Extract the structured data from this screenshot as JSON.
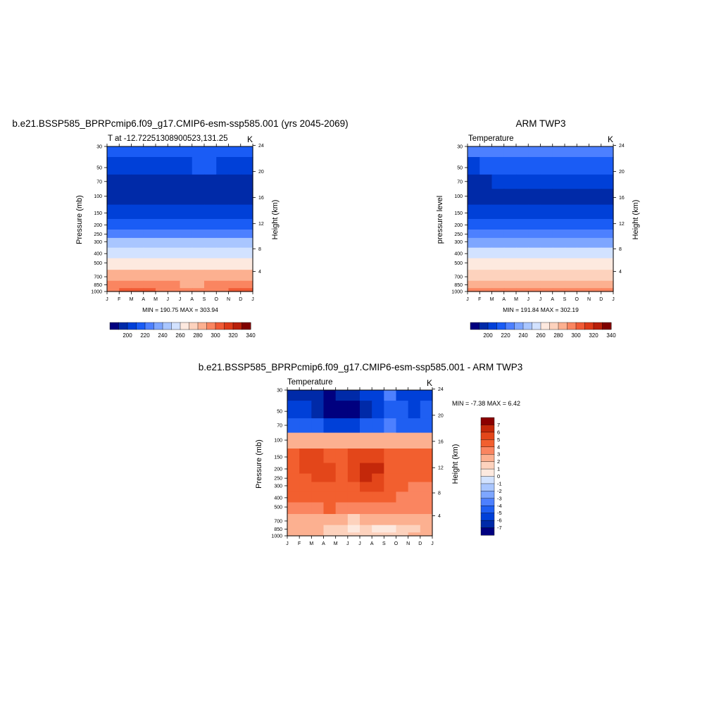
{
  "palettes": {
    "temperature": [
      "#00007f",
      "#002aa8",
      "#0040d8",
      "#1a5cf5",
      "#4d80ff",
      "#7ea6ff",
      "#a9c6ff",
      "#d2e2ff",
      "#fde9df",
      "#fdd2bd",
      "#fcb090",
      "#fa8560",
      "#f05a35",
      "#dc3a18",
      "#b81f0a",
      "#7f0000"
    ],
    "difference": [
      "#00007f",
      "#002aa8",
      "#0040d8",
      "#1f5ff2",
      "#4d80ff",
      "#7ea6ff",
      "#a9c6ff",
      "#d2e2ff",
      "#fde9df",
      "#fdd2bd",
      "#fcb090",
      "#fa8560",
      "#f25f2f",
      "#e3461a",
      "#c4280a",
      "#8b0000"
    ]
  },
  "chart_data": [
    {
      "id": "model",
      "type": "heatmap",
      "title": "b.e21.BSSP585_BPRPcmip6.f09_g17.CMIP6-esm-ssp585.001 (yrs 2045-2069)",
      "left_string": "T at -12.72251308900523,131.25",
      "right_string": "K",
      "ylabel": "Pressure (mb)",
      "ylabel_right": "Height (km)",
      "x_ticks": [
        "J",
        "F",
        "M",
        "A",
        "M",
        "J",
        "J",
        "A",
        "S",
        "O",
        "N",
        "D",
        "J"
      ],
      "y_ticks": [
        "30",
        "50",
        "70",
        "100",
        "150",
        "200",
        "250",
        "300",
        "400",
        "500",
        "700",
        "850",
        "1000"
      ],
      "y_ticks_right": [
        "24",
        "20",
        "16",
        "12",
        "8",
        "4"
      ],
      "stats": "MIN = 190.75 MAX = 303.94",
      "colorbar_labels": [
        "200",
        "220",
        "240",
        "260",
        "280",
        "300",
        "320",
        "340"
      ],
      "columns": [
        "J",
        "F",
        "M",
        "A",
        "M",
        "J",
        "J",
        "A",
        "S",
        "O",
        "N",
        "D"
      ],
      "levels": [
        30,
        50,
        70,
        100,
        150,
        200,
        250,
        300,
        400,
        500,
        700,
        850,
        1000
      ],
      "palette": "temperature",
      "values": [
        [
          213,
          213,
          214,
          215,
          216,
          217,
          218,
          219,
          219,
          218,
          216,
          214
        ],
        [
          201,
          202,
          203,
          205,
          207,
          208,
          209,
          210,
          210,
          208,
          205,
          203
        ],
        [
          195,
          195,
          196,
          197,
          197,
          198,
          198,
          198,
          198,
          198,
          197,
          196
        ],
        [
          196,
          196,
          196,
          196,
          196,
          196,
          196,
          196,
          196,
          196,
          196,
          196
        ],
        [
          208,
          208,
          208,
          208,
          209,
          209,
          209,
          209,
          209,
          209,
          208,
          208
        ],
        [
          219,
          219,
          219,
          219,
          219,
          219,
          219,
          219,
          219,
          219,
          219,
          219
        ],
        [
          229,
          229,
          229,
          229,
          229,
          229,
          229,
          229,
          229,
          229,
          229,
          229
        ],
        [
          242,
          242,
          242,
          242,
          242,
          242,
          242,
          242,
          242,
          242,
          242,
          242
        ],
        [
          256,
          256,
          256,
          256,
          256,
          256,
          256,
          256,
          256,
          256,
          256,
          256
        ],
        [
          268,
          268,
          268,
          268,
          268,
          268,
          268,
          268,
          268,
          268,
          268,
          268
        ],
        [
          281,
          282,
          282,
          282,
          282,
          281,
          281,
          281,
          281,
          282,
          282,
          282
        ],
        [
          292,
          292,
          292,
          292,
          291,
          290,
          289,
          289,
          290,
          291,
          292,
          292
        ],
        [
          299,
          300,
          300,
          300,
          298,
          296,
          295,
          295,
          297,
          299,
          300,
          300
        ]
      ]
    },
    {
      "id": "obs",
      "type": "heatmap",
      "title": "ARM TWP3",
      "left_string": "Temperature",
      "right_string": "K",
      "ylabel": "pressure level",
      "ylabel_right": "Height (km)",
      "x_ticks": [
        "J",
        "F",
        "M",
        "A",
        "M",
        "J",
        "J",
        "A",
        "S",
        "O",
        "N",
        "D",
        "J"
      ],
      "y_ticks": [
        "30",
        "50",
        "70",
        "100",
        "150",
        "200",
        "250",
        "300",
        "400",
        "500",
        "700",
        "850",
        "1000"
      ],
      "y_ticks_right": [
        "24",
        "20",
        "16",
        "12",
        "8",
        "4"
      ],
      "stats": "MIN = 191.84 MAX = 302.19",
      "colorbar_labels": [
        "200",
        "220",
        "240",
        "260",
        "280",
        "300",
        "320",
        "340"
      ],
      "columns": [
        "J",
        "F",
        "M",
        "A",
        "M",
        "J",
        "J",
        "A",
        "S",
        "O",
        "N",
        "D"
      ],
      "levels": [
        30,
        50,
        70,
        100,
        150,
        200,
        250,
        300,
        400,
        500,
        700,
        850,
        1000
      ],
      "palette": "temperature",
      "values": [
        [
          222,
          222,
          222,
          222,
          223,
          223,
          223,
          224,
          224,
          223,
          223,
          222
        ],
        [
          209,
          210,
          211,
          213,
          215,
          216,
          217,
          217,
          216,
          214,
          212,
          210
        ],
        [
          199,
          199,
          200,
          201,
          202,
          203,
          204,
          204,
          203,
          202,
          201,
          200
        ],
        [
          194,
          194,
          194,
          194,
          195,
          195,
          195,
          195,
          195,
          195,
          194,
          194
        ],
        [
          201,
          201,
          201,
          201,
          201,
          201,
          201,
          201,
          201,
          201,
          201,
          201
        ],
        [
          210,
          210,
          210,
          210,
          210,
          210,
          210,
          210,
          210,
          210,
          210,
          210
        ],
        [
          221,
          221,
          221,
          221,
          221,
          221,
          221,
          221,
          221,
          221,
          221,
          221
        ],
        [
          234,
          234,
          234,
          234,
          234,
          234,
          234,
          234,
          234,
          234,
          234,
          234
        ],
        [
          251,
          251,
          251,
          251,
          251,
          251,
          251,
          251,
          251,
          251,
          251,
          251
        ],
        [
          265,
          265,
          265,
          265,
          265,
          265,
          265,
          265,
          265,
          265,
          265,
          265
        ],
        [
          279,
          279,
          279,
          279,
          279,
          278,
          278,
          278,
          278,
          279,
          279,
          279
        ],
        [
          289,
          289,
          289,
          289,
          288,
          287,
          286,
          286,
          287,
          288,
          289,
          289
        ],
        [
          297,
          298,
          298,
          298,
          297,
          295,
          294,
          294,
          295,
          297,
          298,
          298
        ]
      ]
    },
    {
      "id": "diff",
      "type": "heatmap",
      "title": "b.e21.BSSP585_BPRPcmip6.f09_g17.CMIP6-esm-ssp585.001 - ARM TWP3",
      "left_string": "Temperature",
      "right_string": "K",
      "ylabel": "Pressure (mb)",
      "ylabel_right": "Height (km)",
      "x_ticks": [
        "J",
        "F",
        "M",
        "A",
        "M",
        "J",
        "J",
        "A",
        "S",
        "O",
        "N",
        "D",
        "J"
      ],
      "y_ticks": [
        "30",
        "50",
        "70",
        "100",
        "150",
        "200",
        "250",
        "300",
        "400",
        "500",
        "700",
        "850",
        "1000"
      ],
      "y_ticks_right": [
        "24",
        "20",
        "16",
        "12",
        "8",
        "4"
      ],
      "stats": "MIN =  -7.38 MAX =   6.42",
      "colorbar_labels": [
        "7",
        "6",
        "5",
        "4",
        "3",
        "2",
        "1",
        "0",
        "-1",
        "-2",
        "-3",
        "-4",
        "-5",
        "-6",
        "-7"
      ],
      "columns": [
        "J",
        "F",
        "M",
        "A",
        "M",
        "J",
        "J",
        "A",
        "S",
        "O",
        "N",
        "D"
      ],
      "levels": [
        30,
        50,
        70,
        100,
        150,
        200,
        250,
        300,
        400,
        500,
        700,
        850,
        1000
      ],
      "palette": "difference",
      "values": [
        [
          -6.5,
          -6.8,
          -7.0,
          -7.2,
          -6.8,
          -6.5,
          -6.0,
          -5.5,
          -4.0,
          -5.2,
          -5.8,
          -5.5
        ],
        [
          -5.5,
          -6.0,
          -6.5,
          -7.3,
          -7.4,
          -7.2,
          -6.5,
          -5.8,
          -4.8,
          -5.0,
          -5.2,
          -5.0
        ],
        [
          -4.5,
          -4.8,
          -5.0,
          -5.3,
          -5.5,
          -5.3,
          -5.0,
          -4.8,
          -4.0,
          -4.2,
          -4.3,
          -4.4
        ],
        [
          2.0,
          2.0,
          2.0,
          2.0,
          2.0,
          2.0,
          2.0,
          2.0,
          2.0,
          2.0,
          2.0,
          2.0
        ],
        [
          4.5,
          5.2,
          5.5,
          4.8,
          4.8,
          5.3,
          5.6,
          5.5,
          4.8,
          4.5,
          4.3,
          4.3
        ],
        [
          4.5,
          5.3,
          5.6,
          5.3,
          4.8,
          5.6,
          6.4,
          6.0,
          4.8,
          4.5,
          4.2,
          4.3
        ],
        [
          4.5,
          4.8,
          5.2,
          5.3,
          4.8,
          5.2,
          6.0,
          5.8,
          4.5,
          4.2,
          4.0,
          4.0
        ],
        [
          4.5,
          4.6,
          4.8,
          4.9,
          4.8,
          4.8,
          5.2,
          5.0,
          4.4,
          4.0,
          3.8,
          3.8
        ],
        [
          4.0,
          4.2,
          4.5,
          4.6,
          4.5,
          4.2,
          4.3,
          4.3,
          4.0,
          3.7,
          3.5,
          3.5
        ],
        [
          3.5,
          3.8,
          3.8,
          4.0,
          3.8,
          3.7,
          3.5,
          3.5,
          3.6,
          3.4,
          3.3,
          3.3
        ],
        [
          2.4,
          2.6,
          2.6,
          2.4,
          2.0,
          1.8,
          2.0,
          2.2,
          2.0,
          2.3,
          2.5,
          2.5
        ],
        [
          2.0,
          2.2,
          2.0,
          1.5,
          1.0,
          0.8,
          1.2,
          0.5,
          0.8,
          1.2,
          1.8,
          2.0
        ],
        [
          2.2,
          2.4,
          2.2,
          1.8,
          1.5,
          1.3,
          1.5,
          1.4,
          1.5,
          1.9,
          2.2,
          2.3
        ]
      ]
    }
  ]
}
